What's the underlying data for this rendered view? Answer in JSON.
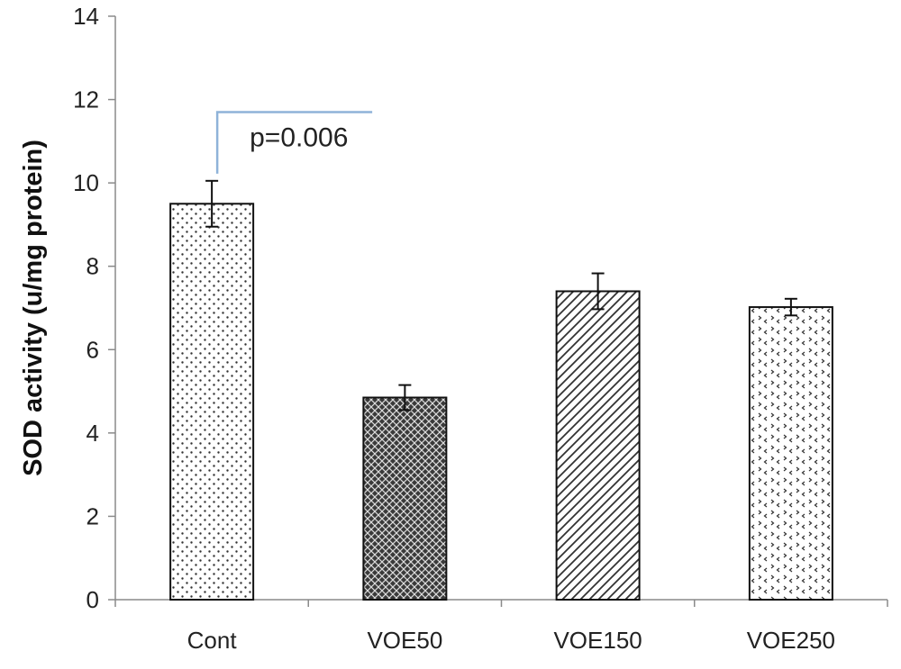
{
  "chart_data": {
    "type": "bar",
    "title": "",
    "xlabel": "",
    "ylabel": "SOD activity (u/mg protein)",
    "ylim": [
      0,
      14
    ],
    "yticks": [
      0,
      2,
      4,
      6,
      8,
      10,
      12,
      14
    ],
    "grid": false,
    "legend": "none",
    "categories": [
      "Cont",
      "VOE50",
      "VOE150",
      "VOE250"
    ],
    "values": [
      9.5,
      4.85,
      7.4,
      7.02
    ],
    "errors": [
      0.55,
      0.3,
      0.43,
      0.2
    ],
    "patterns": [
      "sparse-dots",
      "dense-crosshatch",
      "diagonal-hatch",
      "chevron-dots"
    ],
    "annotations": [
      {
        "text": "p=0.006",
        "category": "Cont",
        "y": 11.7,
        "line_color": "#8fb3d9"
      }
    ]
  }
}
